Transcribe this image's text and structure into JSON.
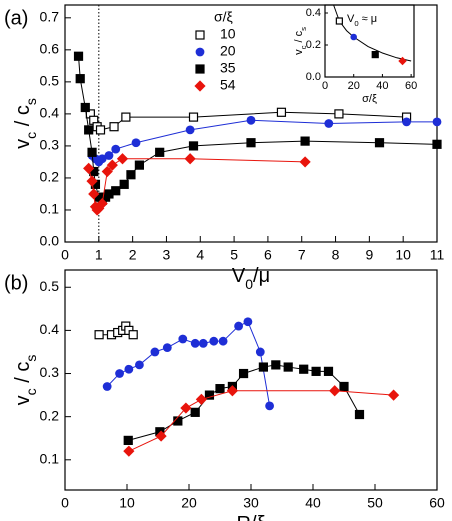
{
  "chart_data": [
    {
      "type": "line",
      "panel_label": "(a)",
      "x_label_parts": [
        "V",
        "0",
        "/μ"
      ],
      "y_label_parts": [
        "v",
        "c",
        " / c",
        "s"
      ],
      "xlim": [
        0,
        11
      ],
      "ylim": [
        0,
        0.74
      ],
      "xticks": [
        0,
        1,
        2,
        3,
        4,
        5,
        6,
        7,
        8,
        9,
        10,
        11
      ],
      "yticks": [
        {
          "value": 0,
          "label": "0.0"
        },
        0.1,
        0.2,
        0.3,
        0.4,
        0.5,
        0.6,
        0.7
      ],
      "vline": 1,
      "legend_title": "σ/ξ",
      "legend": "top-center",
      "series": [
        {
          "name": "10",
          "color": "#000000",
          "marker": "open-square",
          "x": [
            0.75,
            0.85,
            0.95,
            1.05,
            1.45,
            1.8,
            3.8,
            6.4,
            8.1,
            10.1
          ],
          "values": [
            0.4,
            0.38,
            0.36,
            0.35,
            0.36,
            0.39,
            0.39,
            0.405,
            0.4,
            0.39
          ]
        },
        {
          "name": "20",
          "color": "#1e2ed6",
          "marker": "circle",
          "x": [
            0.8,
            0.9,
            1.0,
            1.1,
            1.3,
            1.5,
            2.1,
            3.7,
            5.5,
            7.8,
            10.1,
            11
          ],
          "values": [
            0.27,
            0.26,
            0.25,
            0.26,
            0.27,
            0.29,
            0.31,
            0.35,
            0.38,
            0.37,
            0.375,
            0.375
          ]
        },
        {
          "name": "35",
          "color": "#000000",
          "marker": "square",
          "x": [
            0.4,
            0.45,
            0.6,
            0.7,
            0.8,
            0.85,
            0.9,
            1.0,
            1.1,
            1.2,
            1.3,
            1.5,
            1.75,
            1.95,
            2.2,
            2.8,
            3.8,
            5.5,
            7.1,
            9.3,
            11
          ],
          "values": [
            0.58,
            0.51,
            0.42,
            0.35,
            0.28,
            0.22,
            0.18,
            0.14,
            0.13,
            0.14,
            0.15,
            0.16,
            0.18,
            0.21,
            0.24,
            0.28,
            0.3,
            0.31,
            0.315,
            0.31,
            0.305
          ]
        },
        {
          "name": "54",
          "color": "#e8140c",
          "marker": "diamond",
          "x": [
            0.7,
            0.8,
            0.85,
            0.9,
            0.95,
            1.0,
            1.1,
            1.25,
            1.4,
            1.7,
            3.7,
            7.1
          ],
          "values": [
            0.23,
            0.19,
            0.15,
            0.11,
            0.1,
            0.105,
            0.12,
            0.22,
            0.24,
            0.26,
            0.26,
            0.25
          ]
        }
      ]
    },
    {
      "type": "line",
      "panel_label": "(b)",
      "x_label_parts": [
        "R/ξ"
      ],
      "y_label_parts": [
        "v",
        "c",
        " / c",
        "s"
      ],
      "xlim": [
        0,
        60
      ],
      "ylim": [
        0.03,
        0.54
      ],
      "xticks": [
        0,
        10,
        20,
        30,
        40,
        50,
        60
      ],
      "yticks": [
        0.1,
        0.2,
        0.3,
        0.4,
        0.5
      ],
      "series": [
        {
          "name": "10",
          "color": "#000000",
          "marker": "open-square",
          "x": [
            5.5,
            7.5,
            8.5,
            9.3,
            9.8,
            10.3,
            11
          ],
          "values": [
            0.39,
            0.39,
            0.395,
            0.4,
            0.41,
            0.4,
            0.39
          ]
        },
        {
          "name": "20",
          "color": "#1e2ed6",
          "marker": "circle",
          "x": [
            6.8,
            8.8,
            10.3,
            12,
            14.5,
            16.5,
            19,
            21,
            22.3,
            24,
            25.5,
            28,
            29.5,
            31.5,
            33
          ],
          "values": [
            0.27,
            0.3,
            0.31,
            0.32,
            0.35,
            0.36,
            0.38,
            0.37,
            0.37,
            0.375,
            0.375,
            0.41,
            0.42,
            0.35,
            0.225
          ]
        },
        {
          "name": "35",
          "color": "#000000",
          "marker": "square",
          "x": [
            10.2,
            15.3,
            18.2,
            21,
            23.3,
            25,
            27,
            28.8,
            32,
            34,
            36,
            38.5,
            40.5,
            42.5,
            45,
            47.5
          ],
          "values": [
            0.145,
            0.165,
            0.19,
            0.21,
            0.25,
            0.265,
            0.27,
            0.3,
            0.315,
            0.32,
            0.315,
            0.31,
            0.305,
            0.305,
            0.27,
            0.205
          ]
        },
        {
          "name": "54",
          "color": "#e8140c",
          "marker": "diamond",
          "x": [
            10.3,
            15.5,
            19.5,
            22,
            27,
            43.5,
            53
          ],
          "values": [
            0.12,
            0.155,
            0.22,
            0.24,
            0.26,
            0.26,
            0.25
          ]
        }
      ]
    },
    {
      "type": "line",
      "annotation_parts": [
        "V",
        "0",
        " ≈ μ"
      ],
      "x_label_parts": [
        "σ/ξ"
      ],
      "y_label_parts": [
        "v",
        "c",
        " / c",
        "s"
      ],
      "xlim": [
        0,
        62
      ],
      "ylim": [
        0,
        0.45
      ],
      "xticks": [
        0,
        20,
        40,
        60
      ],
      "yticks": [
        {
          "value": 0,
          "label": "0.0"
        },
        0.2,
        0.4
      ],
      "fit": {
        "color": "#000000",
        "x": [
          6,
          8,
          10,
          15,
          20,
          30,
          40,
          50,
          60
        ],
        "values": [
          0.45,
          0.4,
          0.35,
          0.29,
          0.25,
          0.19,
          0.15,
          0.12,
          0.1
        ]
      },
      "series": [
        {
          "color": "#000000",
          "marker": "open-square",
          "x": [
            10
          ],
          "values": [
            0.35
          ]
        },
        {
          "color": "#1e2ed6",
          "marker": "circle",
          "x": [
            20
          ],
          "values": [
            0.25
          ]
        },
        {
          "color": "#000000",
          "marker": "square",
          "x": [
            35
          ],
          "values": [
            0.14
          ]
        },
        {
          "color": "#e8140c",
          "marker": "diamond",
          "x": [
            54
          ],
          "values": [
            0.1
          ]
        }
      ]
    }
  ]
}
